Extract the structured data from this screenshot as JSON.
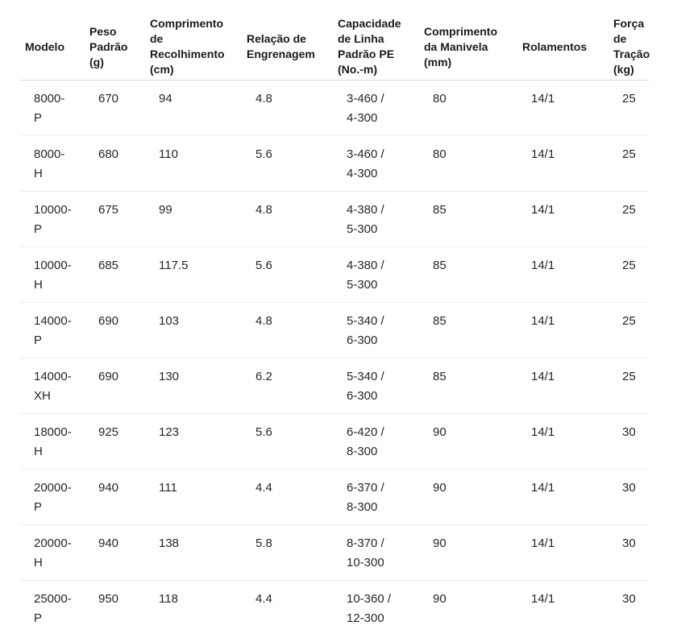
{
  "colors": {
    "text": "#262626",
    "header_text": "#1a1a1a",
    "header_border": "#d4d4d4",
    "row_border": "#ececec",
    "background": "#ffffff"
  },
  "chart_data": {
    "type": "table",
    "title": "",
    "columns": [
      {
        "key": "modelo",
        "label": "Modelo"
      },
      {
        "key": "peso_padrao",
        "label": "Peso\nPadrão\n(g)"
      },
      {
        "key": "comprimento_recolhimento",
        "label": "Comprimento\nde\nRecolhimento\n(cm)"
      },
      {
        "key": "relacao_engrenagem",
        "label": "Relação de\nEngrenagem"
      },
      {
        "key": "capacidade_linha",
        "label": "Capacidade\nde Linha\nPadrão PE\n(No.-m)"
      },
      {
        "key": "comprimento_manivela",
        "label": "Comprimento\nda Manivela\n(mm)"
      },
      {
        "key": "rolamentos",
        "label": "Rolamentos"
      },
      {
        "key": "forca_tracao",
        "label": "Força\nde\nTração\n(kg)"
      }
    ],
    "rows": [
      [
        "8000-\nP",
        "670",
        "94",
        "4.8",
        "3-460 /\n4-300",
        "80",
        "14/1",
        "25"
      ],
      [
        "8000-\nH",
        "680",
        "110",
        "5.6",
        "3-460 /\n4-300",
        "80",
        "14/1",
        "25"
      ],
      [
        "10000-\nP",
        "675",
        "99",
        "4.8",
        "4-380 /\n5-300",
        "85",
        "14/1",
        "25"
      ],
      [
        "10000-\nH",
        "685",
        "117.5",
        "5.6",
        "4-380 /\n5-300",
        "85",
        "14/1",
        "25"
      ],
      [
        "14000-\nP",
        "690",
        "103",
        "4.8",
        "5-340 /\n6-300",
        "85",
        "14/1",
        "25"
      ],
      [
        "14000-\nXH",
        "690",
        "130",
        "6.2",
        "5-340 /\n6-300",
        "85",
        "14/1",
        "25"
      ],
      [
        "18000-\nH",
        "925",
        "123",
        "5.6",
        "6-420 /\n8-300",
        "90",
        "14/1",
        "30"
      ],
      [
        "20000-\nP",
        "940",
        "111",
        "4.4",
        "6-370 /\n8-300",
        "90",
        "14/1",
        "30"
      ],
      [
        "20000-\nH",
        "940",
        "138",
        "5.8",
        "8-370 /\n10-300",
        "90",
        "14/1",
        "30"
      ],
      [
        "25000-\nP",
        "950",
        "118",
        "4.4",
        "10-360 /\n12-300",
        "90",
        "14/1",
        "30"
      ]
    ]
  }
}
